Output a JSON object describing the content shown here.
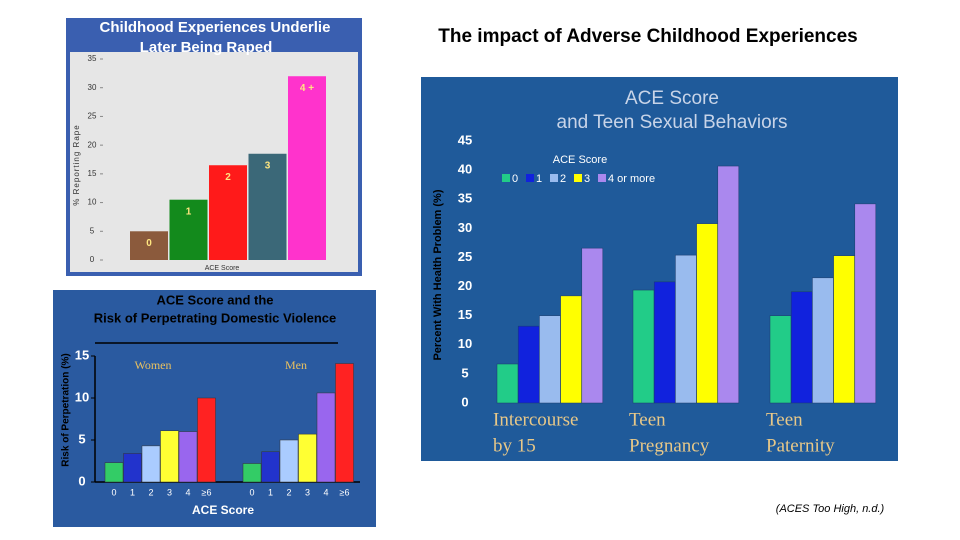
{
  "title": "The impact of Adverse Childhood Experiences",
  "citation": "(ACES Too High, n.d.)",
  "chart_data": [
    {
      "type": "bar",
      "title": [
        "Childhood Experiences Underlie",
        "Later Being Raped"
      ],
      "y_label": "% Reporting Rape",
      "x_label": "ACE Score",
      "categories": [
        "0",
        "1",
        "2",
        "3",
        "4 +"
      ],
      "values": [
        5,
        10.5,
        16.5,
        18.5,
        32
      ],
      "colors": [
        "#8b5a3c",
        "#138a1c",
        "#ff1a1a",
        "#3b6878",
        "#ff33cc"
      ],
      "ylim": [
        0,
        35
      ],
      "yticks": [
        0,
        5,
        10,
        15,
        20,
        25,
        30,
        35
      ],
      "grid": false
    },
    {
      "type": "grouped_bar",
      "title": [
        "ACE Score and the",
        "Risk of Perpetrating Domestic Violence"
      ],
      "y_label": "Risk of Perpetration (%)",
      "x_label": "ACE Score",
      "categories": [
        "0",
        "1",
        "2",
        "3",
        "4",
        "≥6"
      ],
      "colors": [
        "#33cc66",
        "#2233cc",
        "#aaccff",
        "#ffff33",
        "#9966ee",
        "#ff2222"
      ],
      "series": [
        {
          "name": "Women",
          "values": [
            2.3,
            3.4,
            4.3,
            6.1,
            6.0,
            10.0
          ]
        },
        {
          "name": "Men",
          "values": [
            2.2,
            3.6,
            5.0,
            5.7,
            10.6,
            14.1
          ]
        }
      ],
      "ylim": [
        0,
        15
      ],
      "yticks": [
        0,
        5,
        10,
        15
      ]
    },
    {
      "type": "grouped_bar_series",
      "title": [
        "ACE Score",
        "and Teen Sexual Behaviors"
      ],
      "y_label": "Percent With Health Problem (%)",
      "legend_title": "ACE Score",
      "categories": [
        [
          "Intercourse",
          "by 15"
        ],
        [
          "Teen",
          "Pregnancy"
        ],
        [
          "Teen",
          "Paternity"
        ]
      ],
      "series": [
        {
          "name": "0",
          "color": "#22cc88",
          "values": [
            6.7,
            19.4,
            15
          ]
        },
        {
          "name": "1",
          "color": "#1122dd",
          "values": [
            13.2,
            20.8,
            19.1
          ]
        },
        {
          "name": "2",
          "color": "#99bbee",
          "values": [
            15,
            25.4,
            21.5
          ]
        },
        {
          "name": "3",
          "color": "#ffff00",
          "values": [
            18.4,
            30.8,
            25.3
          ]
        },
        {
          "name": "4 or more",
          "color": "#aa88ee",
          "values": [
            26.6,
            40.7,
            34.2
          ]
        }
      ],
      "ylim": [
        0,
        45
      ],
      "yticks": [
        0,
        5,
        10,
        15,
        20,
        25,
        30,
        35,
        40,
        45
      ],
      "legend": "top-left"
    }
  ]
}
